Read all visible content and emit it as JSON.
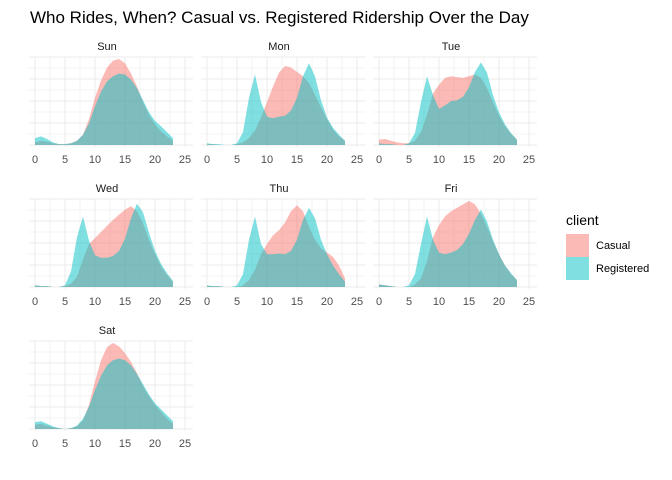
{
  "chart_data": {
    "type": "area",
    "title": "Who Rides, When? Casual vs. Registered Ridership Over the Day",
    "xlabel": "",
    "ylabel": "",
    "xlim": [
      0,
      25
    ],
    "x_ticks": [
      0,
      5,
      10,
      15,
      20,
      25
    ],
    "grid": true,
    "legend": {
      "title": "client",
      "position": "right"
    },
    "colors": {
      "Casual": "#F8766D",
      "Registered": "#00BFC4"
    },
    "x": [
      0,
      1,
      2,
      3,
      4,
      5,
      6,
      7,
      8,
      9,
      10,
      11,
      12,
      13,
      14,
      15,
      16,
      17,
      18,
      19,
      20,
      21,
      22,
      23
    ],
    "facets": [
      {
        "name": "Sun",
        "series": [
          {
            "name": "Casual",
            "values": [
              0.03,
              0.05,
              0.04,
              0.02,
              0.01,
              0.01,
              0.02,
              0.05,
              0.12,
              0.3,
              0.55,
              0.75,
              0.9,
              0.98,
              1.0,
              0.95,
              0.83,
              0.68,
              0.5,
              0.35,
              0.24,
              0.16,
              0.1,
              0.05
            ]
          },
          {
            "name": "Registered",
            "values": [
              0.08,
              0.1,
              0.07,
              0.03,
              0.01,
              0.01,
              0.02,
              0.05,
              0.12,
              0.25,
              0.45,
              0.62,
              0.74,
              0.8,
              0.83,
              0.82,
              0.76,
              0.66,
              0.52,
              0.38,
              0.28,
              0.22,
              0.15,
              0.08
            ]
          }
        ]
      },
      {
        "name": "Mon",
        "series": [
          {
            "name": "Casual",
            "values": [
              0.01,
              0.01,
              0.0,
              0.0,
              0.0,
              0.01,
              0.03,
              0.08,
              0.17,
              0.32,
              0.5,
              0.68,
              0.84,
              0.92,
              0.9,
              0.85,
              0.8,
              0.72,
              0.58,
              0.44,
              0.3,
              0.18,
              0.1,
              0.05
            ]
          },
          {
            "name": "Registered",
            "values": [
              0.02,
              0.01,
              0.01,
              0.0,
              0.0,
              0.02,
              0.15,
              0.55,
              0.82,
              0.5,
              0.33,
              0.31,
              0.33,
              0.34,
              0.4,
              0.55,
              0.8,
              0.95,
              0.8,
              0.52,
              0.32,
              0.2,
              0.12,
              0.05
            ]
          }
        ]
      },
      {
        "name": "Tue",
        "series": [
          {
            "name": "Casual",
            "values": [
              0.06,
              0.07,
              0.05,
              0.03,
              0.02,
              0.02,
              0.05,
              0.15,
              0.35,
              0.6,
              0.7,
              0.78,
              0.8,
              0.79,
              0.78,
              0.8,
              0.82,
              0.78,
              0.66,
              0.5,
              0.34,
              0.22,
              0.13,
              0.06
            ]
          },
          {
            "name": "Registered",
            "values": [
              0.02,
              0.01,
              0.01,
              0.0,
              0.0,
              0.02,
              0.14,
              0.5,
              0.8,
              0.58,
              0.42,
              0.46,
              0.51,
              0.52,
              0.56,
              0.67,
              0.85,
              0.96,
              0.84,
              0.58,
              0.38,
              0.24,
              0.14,
              0.06
            ]
          }
        ]
      },
      {
        "name": "Wed",
        "series": [
          {
            "name": "Casual",
            "values": [
              0.02,
              0.01,
              0.01,
              0.0,
              0.0,
              0.01,
              0.04,
              0.12,
              0.32,
              0.5,
              0.57,
              0.64,
              0.71,
              0.78,
              0.84,
              0.9,
              0.94,
              0.88,
              0.74,
              0.55,
              0.38,
              0.24,
              0.14,
              0.06
            ]
          },
          {
            "name": "Registered",
            "values": [
              0.02,
              0.01,
              0.01,
              0.0,
              0.0,
              0.02,
              0.18,
              0.58,
              0.82,
              0.54,
              0.37,
              0.34,
              0.34,
              0.36,
              0.42,
              0.56,
              0.8,
              0.97,
              0.87,
              0.63,
              0.42,
              0.27,
              0.16,
              0.07
            ]
          }
        ]
      },
      {
        "name": "Thu",
        "series": [
          {
            "name": "Casual",
            "values": [
              0.01,
              0.01,
              0.01,
              0.0,
              0.0,
              0.0,
              0.02,
              0.08,
              0.2,
              0.38,
              0.5,
              0.6,
              0.66,
              0.75,
              0.88,
              0.95,
              0.88,
              0.7,
              0.55,
              0.45,
              0.4,
              0.35,
              0.25,
              0.1
            ]
          },
          {
            "name": "Registered",
            "values": [
              0.02,
              0.01,
              0.01,
              0.0,
              0.0,
              0.02,
              0.15,
              0.55,
              0.82,
              0.5,
              0.38,
              0.38,
              0.39,
              0.38,
              0.42,
              0.55,
              0.78,
              0.92,
              0.8,
              0.55,
              0.38,
              0.25,
              0.15,
              0.06
            ]
          }
        ]
      },
      {
        "name": "Fri",
        "series": [
          {
            "name": "Casual",
            "values": [
              0.03,
              0.02,
              0.01,
              0.0,
              0.0,
              0.0,
              0.03,
              0.1,
              0.3,
              0.58,
              0.72,
              0.82,
              0.88,
              0.92,
              0.96,
              1.0,
              0.96,
              0.85,
              0.7,
              0.53,
              0.38,
              0.25,
              0.15,
              0.08
            ]
          },
          {
            "name": "Registered",
            "values": [
              0.03,
              0.02,
              0.01,
              0.0,
              0.0,
              0.02,
              0.15,
              0.5,
              0.82,
              0.55,
              0.4,
              0.38,
              0.4,
              0.43,
              0.5,
              0.62,
              0.78,
              0.9,
              0.76,
              0.55,
              0.38,
              0.25,
              0.16,
              0.08
            ]
          }
        ]
      },
      {
        "name": "Sat",
        "series": [
          {
            "name": "Casual",
            "values": [
              0.05,
              0.06,
              0.04,
              0.02,
              0.01,
              0.0,
              0.01,
              0.03,
              0.1,
              0.28,
              0.55,
              0.8,
              0.95,
              1.0,
              0.96,
              0.88,
              0.78,
              0.65,
              0.5,
              0.38,
              0.28,
              0.2,
              0.12,
              0.06
            ]
          },
          {
            "name": "Registered",
            "values": [
              0.08,
              0.09,
              0.06,
              0.03,
              0.01,
              0.0,
              0.01,
              0.04,
              0.12,
              0.26,
              0.45,
              0.62,
              0.74,
              0.8,
              0.82,
              0.8,
              0.74,
              0.64,
              0.52,
              0.4,
              0.3,
              0.23,
              0.16,
              0.09
            ]
          }
        ]
      }
    ]
  }
}
